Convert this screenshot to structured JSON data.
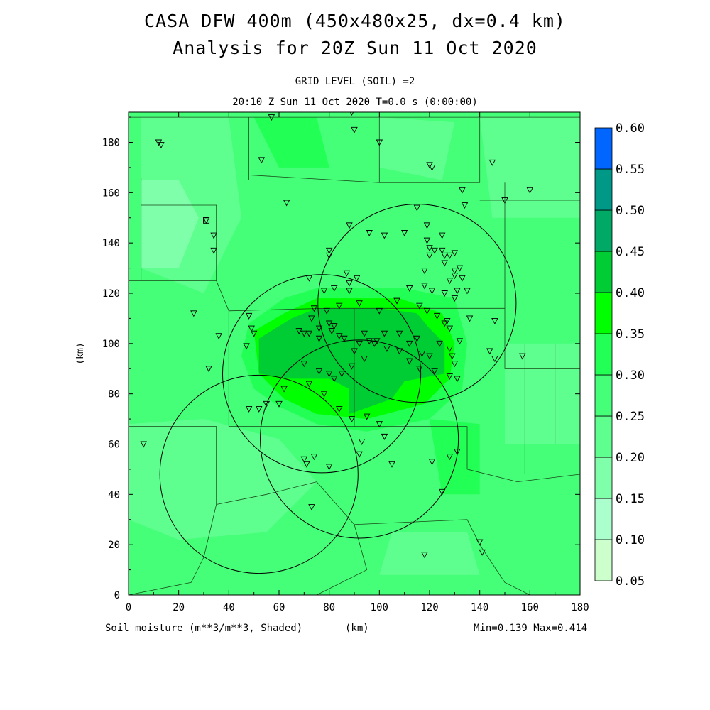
{
  "title_line1": "CASA DFW 400m (450x480x25, dx=0.4 km)",
  "title_line2": "Analysis for 20Z Sun 11 Oct 2020",
  "subtitle_line1": "GRID LEVEL (SOIL) =2",
  "subtitle_line2": "20:10 Z Sun 11 Oct 2020   T=0.0 s (0:00:00)",
  "footer": {
    "variable": "Soil moisture (m**3/m**3, Shaded)",
    "unit": "(km)",
    "minmax": "Min=0.139 Max=0.414"
  },
  "chart_data": {
    "type": "heatmap",
    "xlabel": "(km)",
    "ylabel": "(km)",
    "xlim": [
      0,
      180
    ],
    "ylim": [
      0,
      192
    ],
    "x_ticks": [
      0,
      20,
      40,
      60,
      80,
      100,
      120,
      140,
      160,
      180
    ],
    "y_ticks": [
      0,
      20,
      40,
      60,
      80,
      100,
      120,
      140,
      160,
      180
    ],
    "colorbar": {
      "levels": [
        0.05,
        0.1,
        0.15,
        0.2,
        0.25,
        0.3,
        0.35,
        0.4,
        0.45,
        0.5,
        0.55,
        0.6
      ],
      "labels": [
        "0.05",
        "0.10",
        "0.15",
        "0.20",
        "0.25",
        "0.30",
        "0.35",
        "0.40",
        "0.45",
        "0.50",
        "0.55",
        "0.60"
      ],
      "colors": [
        "#ccffcc",
        "#aaffcc",
        "#7fffaa",
        "#5fff8f",
        "#44ff77",
        "#22ff55",
        "#00ff00",
        "#00cc33",
        "#00aa66",
        "#009988",
        "#0066ff"
      ]
    },
    "background_value_range": [
      0.25,
      0.3
    ],
    "field_regions": [
      {
        "range": "0.20-0.25",
        "polygon": [
          [
            5,
            190
          ],
          [
            40,
            190
          ],
          [
            45,
            150
          ],
          [
            30,
            120
          ],
          [
            5,
            130
          ]
        ]
      },
      {
        "range": "0.20-0.25",
        "polygon": [
          [
            100,
            190
          ],
          [
            130,
            188
          ],
          [
            125,
            165
          ],
          [
            100,
            170
          ]
        ]
      },
      {
        "range": "0.20-0.25",
        "polygon": [
          [
            140,
            190
          ],
          [
            180,
            190
          ],
          [
            180,
            150
          ],
          [
            145,
            150
          ]
        ]
      },
      {
        "range": "0.20-0.25",
        "polygon": [
          [
            0,
            68
          ],
          [
            30,
            70
          ],
          [
            60,
            62
          ],
          [
            75,
            45
          ],
          [
            55,
            25
          ],
          [
            20,
            22
          ],
          [
            0,
            30
          ]
        ]
      },
      {
        "range": "0.20-0.25",
        "polygon": [
          [
            150,
            100
          ],
          [
            180,
            100
          ],
          [
            180,
            60
          ],
          [
            150,
            60
          ]
        ]
      },
      {
        "range": "0.20-0.25",
        "polygon": [
          [
            100,
            8
          ],
          [
            140,
            8
          ],
          [
            135,
            25
          ],
          [
            105,
            25
          ]
        ]
      },
      {
        "range": "0.15-0.20",
        "polygon": [
          [
            5,
            165
          ],
          [
            20,
            165
          ],
          [
            28,
            150
          ],
          [
            20,
            130
          ],
          [
            5,
            130
          ]
        ]
      },
      {
        "range": "0.30-0.35",
        "polygon": [
          [
            48,
            108
          ],
          [
            62,
            118
          ],
          [
            75,
            122
          ],
          [
            110,
            122
          ],
          [
            130,
            118
          ],
          [
            135,
            100
          ],
          [
            133,
            82
          ],
          [
            120,
            70
          ],
          [
            95,
            65
          ],
          [
            75,
            68
          ],
          [
            60,
            75
          ],
          [
            50,
            82
          ],
          [
            45,
            95
          ]
        ]
      },
      {
        "range": "0.30-0.35",
        "polygon": [
          [
            50,
            190
          ],
          [
            75,
            190
          ],
          [
            80,
            170
          ],
          [
            60,
            170
          ]
        ]
      },
      {
        "range": "0.30-0.35",
        "polygon": [
          [
            120,
            70
          ],
          [
            140,
            68
          ],
          [
            140,
            40
          ],
          [
            125,
            40
          ]
        ]
      },
      {
        "range": "0.35-0.40",
        "polygon": [
          [
            50,
            105
          ],
          [
            62,
            112
          ],
          [
            75,
            118
          ],
          [
            108,
            118
          ],
          [
            125,
            112
          ],
          [
            130,
            100
          ],
          [
            128,
            86
          ],
          [
            118,
            76
          ],
          [
            95,
            70
          ],
          [
            75,
            72
          ],
          [
            62,
            78
          ],
          [
            52,
            88
          ]
        ]
      },
      {
        "range": "0.40-0.45",
        "polygon": [
          [
            52,
            102
          ],
          [
            65,
            110
          ],
          [
            75,
            114
          ],
          [
            100,
            114
          ],
          [
            115,
            112
          ],
          [
            120,
            106
          ],
          [
            126,
            100
          ],
          [
            126,
            88
          ],
          [
            110,
            85
          ],
          [
            105,
            78
          ],
          [
            88,
            72
          ],
          [
            88,
            82
          ],
          [
            80,
            86
          ],
          [
            65,
            86
          ],
          [
            52,
            88
          ]
        ]
      }
    ],
    "radar_circles": [
      {
        "center": [
          115,
          116
        ],
        "radius": 39.5
      },
      {
        "center": [
          77,
          88
        ],
        "radius": 39.5
      },
      {
        "center": [
          92,
          62
        ],
        "radius": 39.5
      },
      {
        "center": [
          52,
          48
        ],
        "radius": 39.5
      }
    ],
    "station_markers": [
      [
        12,
        180
      ],
      [
        13,
        179
      ],
      [
        57,
        190
      ],
      [
        89,
        192
      ],
      [
        90,
        185
      ],
      [
        100,
        180
      ],
      [
        53,
        173
      ],
      [
        120,
        171
      ],
      [
        121,
        170
      ],
      [
        145,
        172
      ],
      [
        133,
        161
      ],
      [
        160,
        161
      ],
      [
        63,
        156
      ],
      [
        150,
        157
      ],
      [
        134,
        155
      ],
      [
        115,
        154
      ],
      [
        31,
        149
      ],
      [
        34,
        143
      ],
      [
        34,
        137
      ],
      [
        88,
        147
      ],
      [
        80,
        137
      ],
      [
        80,
        135
      ],
      [
        87,
        128
      ],
      [
        88,
        124
      ],
      [
        91,
        126
      ],
      [
        102,
        143
      ],
      [
        96,
        144
      ],
      [
        110,
        144
      ],
      [
        119,
        147
      ],
      [
        125,
        143
      ],
      [
        119,
        141
      ],
      [
        120,
        138
      ],
      [
        120,
        135
      ],
      [
        122,
        137
      ],
      [
        125,
        137
      ],
      [
        126,
        135
      ],
      [
        126,
        132
      ],
      [
        128,
        135
      ],
      [
        130,
        136
      ],
      [
        132,
        130
      ],
      [
        133,
        126
      ],
      [
        130,
        129
      ],
      [
        130,
        127
      ],
      [
        128,
        125
      ],
      [
        118,
        129
      ],
      [
        118,
        123
      ],
      [
        121,
        121
      ],
      [
        126,
        120
      ],
      [
        131,
        121
      ],
      [
        135,
        121
      ],
      [
        130,
        118
      ],
      [
        72,
        126
      ],
      [
        78,
        121
      ],
      [
        79,
        113
      ],
      [
        82,
        122
      ],
      [
        88,
        121
      ],
      [
        92,
        116
      ],
      [
        74,
        114
      ],
      [
        73,
        110
      ],
      [
        76,
        106
      ],
      [
        80,
        108
      ],
      [
        82,
        107
      ],
      [
        84,
        115
      ],
      [
        100,
        113
      ],
      [
        107,
        117
      ],
      [
        112,
        122
      ],
      [
        116,
        115
      ],
      [
        119,
        113
      ],
      [
        123,
        111
      ],
      [
        126,
        108
      ],
      [
        127,
        109
      ],
      [
        128,
        106
      ],
      [
        136,
        110
      ],
      [
        146,
        109
      ],
      [
        26,
        112
      ],
      [
        36,
        103
      ],
      [
        48,
        111
      ],
      [
        49,
        106
      ],
      [
        50,
        104
      ],
      [
        47,
        99
      ],
      [
        68,
        105
      ],
      [
        70,
        104
      ],
      [
        72,
        104
      ],
      [
        76,
        102
      ],
      [
        81,
        105
      ],
      [
        84,
        103
      ],
      [
        86,
        102
      ],
      [
        94,
        104
      ],
      [
        96,
        101
      ],
      [
        98,
        100
      ],
      [
        102,
        104
      ],
      [
        108,
        104
      ],
      [
        115,
        102
      ],
      [
        112,
        100
      ],
      [
        117,
        96
      ],
      [
        120,
        95
      ],
      [
        124,
        100
      ],
      [
        128,
        98
      ],
      [
        129,
        95
      ],
      [
        130,
        92
      ],
      [
        132,
        101
      ],
      [
        144,
        97
      ],
      [
        146,
        94
      ],
      [
        157,
        95
      ],
      [
        32,
        90
      ],
      [
        70,
        92
      ],
      [
        76,
        89
      ],
      [
        80,
        88
      ],
      [
        82,
        86
      ],
      [
        85,
        88
      ],
      [
        89,
        91
      ],
      [
        90,
        97
      ],
      [
        92,
        100
      ],
      [
        94,
        94
      ],
      [
        99,
        101
      ],
      [
        103,
        98
      ],
      [
        108,
        97
      ],
      [
        112,
        93
      ],
      [
        116,
        90
      ],
      [
        122,
        89
      ],
      [
        128,
        87
      ],
      [
        131,
        86
      ],
      [
        48,
        74
      ],
      [
        52,
        74
      ],
      [
        55,
        76
      ],
      [
        60,
        76
      ],
      [
        62,
        82
      ],
      [
        72,
        84
      ],
      [
        78,
        80
      ],
      [
        84,
        74
      ],
      [
        89,
        70
      ],
      [
        95,
        71
      ],
      [
        100,
        68
      ],
      [
        93,
        61
      ],
      [
        102,
        63
      ],
      [
        92,
        56
      ],
      [
        74,
        55
      ],
      [
        71,
        52
      ],
      [
        70,
        54
      ],
      [
        80,
        51
      ],
      [
        105,
        52
      ],
      [
        128,
        55
      ],
      [
        121,
        53
      ],
      [
        131,
        57
      ],
      [
        6,
        60
      ],
      [
        125,
        41
      ],
      [
        73,
        35
      ],
      [
        140,
        21
      ],
      [
        141,
        17
      ],
      [
        118,
        16
      ]
    ],
    "square_marker": [
      31,
      149
    ],
    "county_lines": [
      [
        [
          0,
          190
        ],
        [
          180,
          190
        ]
      ],
      [
        [
          0,
          165
        ],
        [
          48,
          165
        ],
        [
          48,
          190
        ]
      ],
      [
        [
          48,
          167
        ],
        [
          100,
          164
        ],
        [
          100,
          190
        ]
      ],
      [
        [
          100,
          164
        ],
        [
          140,
          164
        ],
        [
          140,
          190
        ]
      ],
      [
        [
          140,
          157
        ],
        [
          180,
          157
        ]
      ],
      [
        [
          5,
          166
        ],
        [
          5,
          125
        ],
        [
          0,
          125
        ]
      ],
      [
        [
          5,
          125
        ],
        [
          35,
          125
        ],
        [
          35,
          155
        ],
        [
          5,
          155
        ]
      ],
      [
        [
          35,
          125
        ],
        [
          40,
          113
        ],
        [
          78,
          114
        ],
        [
          78,
          167
        ]
      ],
      [
        [
          78,
          114
        ],
        [
          122,
          114
        ],
        [
          150,
          114
        ],
        [
          150,
          90
        ],
        [
          175,
          90
        ],
        [
          180,
          90
        ]
      ],
      [
        [
          150,
          164
        ],
        [
          150,
          114
        ]
      ],
      [
        [
          40,
          113
        ],
        [
          40,
          67
        ],
        [
          77,
          67
        ],
        [
          90,
          67
        ],
        [
          90,
          114
        ]
      ],
      [
        [
          90,
          67
        ],
        [
          135,
          67
        ],
        [
          135,
          50
        ],
        [
          155,
          45
        ],
        [
          180,
          48
        ]
      ],
      [
        [
          0,
          67
        ],
        [
          35,
          67
        ],
        [
          35,
          36
        ],
        [
          30,
          15
        ],
        [
          25,
          5
        ],
        [
          0,
          0
        ]
      ],
      [
        [
          35,
          36
        ],
        [
          55,
          40
        ],
        [
          75,
          45
        ]
      ],
      [
        [
          75,
          45
        ],
        [
          90,
          28
        ],
        [
          95,
          10
        ],
        [
          75,
          0
        ]
      ],
      [
        [
          90,
          28
        ],
        [
          135,
          30
        ],
        [
          140,
          20
        ],
        [
          150,
          5
        ],
        [
          160,
          0
        ]
      ],
      [
        [
          158,
          100
        ],
        [
          158,
          48
        ]
      ],
      [
        [
          170,
          100
        ],
        [
          170,
          60
        ]
      ]
    ]
  }
}
